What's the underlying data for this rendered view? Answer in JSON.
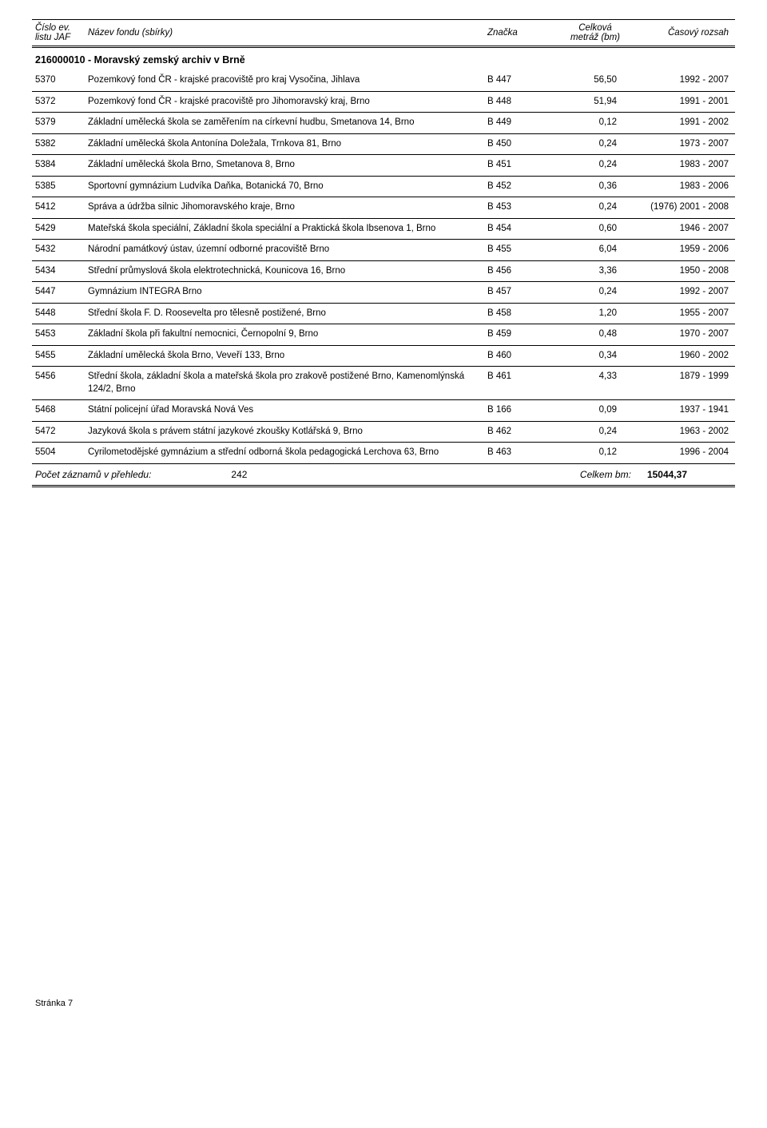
{
  "header": {
    "col_cislo_line1": "Číslo ev.",
    "col_cislo_line2": "listu JAF",
    "col_nazev": "Název  fondu (sbírky)",
    "col_znacka": "Značka",
    "col_metraz_line1": "Celková",
    "col_metraz_line2": "metráž (bm)",
    "col_rozsah": "Časový rozsah"
  },
  "section_title": "216000010 - Moravský zemský archiv v Brně",
  "rows": [
    {
      "cislo": "5370",
      "nazev": "Pozemkový fond ČR - krajské pracoviště pro kraj Vysočina, Jihlava",
      "znacka": "B 447",
      "metraz": "56,50",
      "rozsah": "1992 - 2007"
    },
    {
      "cislo": "5372",
      "nazev": "Pozemkový fond ČR - krajské pracoviště pro Jihomoravský kraj, Brno",
      "znacka": "B 448",
      "metraz": "51,94",
      "rozsah": "1991 - 2001"
    },
    {
      "cislo": "5379",
      "nazev": "Základní umělecká škola se zaměřením na církevní hudbu, Smetanova 14, Brno",
      "znacka": "B 449",
      "metraz": "0,12",
      "rozsah": "1991 - 2002"
    },
    {
      "cislo": "5382",
      "nazev": "Základní umělecká škola Antonína Doležala, Trnkova 81, Brno",
      "znacka": "B 450",
      "metraz": "0,24",
      "rozsah": "1973 - 2007"
    },
    {
      "cislo": "5384",
      "nazev": "Základní umělecká škola Brno, Smetanova 8, Brno",
      "znacka": "B 451",
      "metraz": "0,24",
      "rozsah": "1983 - 2007"
    },
    {
      "cislo": "5385",
      "nazev": "Sportovní gymnázium Ludvíka Daňka, Botanická 70, Brno",
      "znacka": "B 452",
      "metraz": "0,36",
      "rozsah": "1983 - 2006"
    },
    {
      "cislo": "5412",
      "nazev": "Správa a údržba silnic Jihomoravského kraje, Brno",
      "znacka": "B 453",
      "metraz": "0,24",
      "rozsah": "(1976) 2001 - 2008"
    },
    {
      "cislo": "5429",
      "nazev": "Mateřská škola speciální, Základní škola speciální a Praktická škola Ibsenova 1, Brno",
      "znacka": "B 454",
      "metraz": "0,60",
      "rozsah": "1946 - 2007"
    },
    {
      "cislo": "5432",
      "nazev": "Národní památkový ústav, územní odborné pracoviště Brno",
      "znacka": "B 455",
      "metraz": "6,04",
      "rozsah": "1959 - 2006"
    },
    {
      "cislo": "5434",
      "nazev": "Střední průmyslová škola elektrotechnická, Kounicova 16, Brno",
      "znacka": "B 456",
      "metraz": "3,36",
      "rozsah": "1950 - 2008"
    },
    {
      "cislo": "5447",
      "nazev": "Gymnázium INTEGRA Brno",
      "znacka": "B 457",
      "metraz": "0,24",
      "rozsah": "1992 - 2007"
    },
    {
      "cislo": "5448",
      "nazev": "Střední škola F. D. Roosevelta pro tělesně postižené, Brno",
      "znacka": "B 458",
      "metraz": "1,20",
      "rozsah": "1955 - 2007"
    },
    {
      "cislo": "5453",
      "nazev": "Základní škola při fakultní nemocnici, Černopolní 9, Brno",
      "znacka": "B 459",
      "metraz": "0,48",
      "rozsah": "1970 - 2007"
    },
    {
      "cislo": "5455",
      "nazev": "Základní umělecká škola Brno, Veveří 133, Brno",
      "znacka": "B 460",
      "metraz": "0,34",
      "rozsah": "1960 - 2002"
    },
    {
      "cislo": "5456",
      "nazev": "Střední škola, základní škola a mateřská škola pro zrakově postižené Brno, Kamenomlýnská 124/2, Brno",
      "znacka": "B 461",
      "metraz": "4,33",
      "rozsah": "1879 - 1999"
    },
    {
      "cislo": "5468",
      "nazev": "Státní policejní úřad Moravská Nová Ves",
      "znacka": "B 166",
      "metraz": "0,09",
      "rozsah": "1937 - 1941"
    },
    {
      "cislo": "5472",
      "nazev": "Jazyková škola s právem státní jazykové zkoušky Kotlářská 9, Brno",
      "znacka": "B 462",
      "metraz": "0,24",
      "rozsah": "1963 - 2002"
    },
    {
      "cislo": "5504",
      "nazev": "Cyrilometodějské gymnázium a střední odborná škola pedagogická Lerchova 63, Brno",
      "znacka": "B 463",
      "metraz": "0,12",
      "rozsah": "1996 - 2004"
    }
  ],
  "summary": {
    "label": "Počet záznamů v přehledu:",
    "count": "242",
    "mid_label": "Celkem bm:",
    "total": "15044,37"
  },
  "footer": "Stránka 7"
}
